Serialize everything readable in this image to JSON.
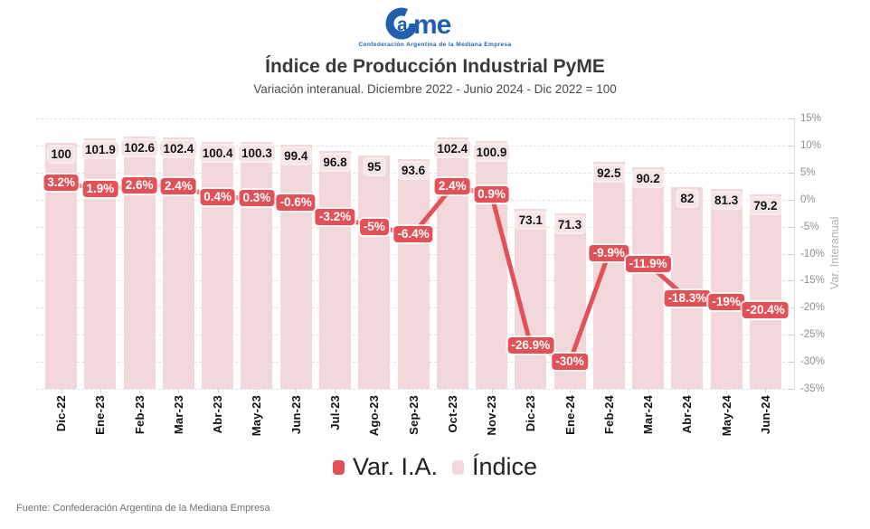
{
  "logo": {
    "name": "Came",
    "caption": "Confederación Argentina de la Mediana Empresa",
    "color": "#1f5fae"
  },
  "header": {
    "title": "Índice de Producción Industrial PyME",
    "subtitle": "Variación interanual. Diciembre 2022 - Junio 2024 - Dic 2022 = 100"
  },
  "chart_data": {
    "type": "bar+line",
    "categories": [
      "Dic-22",
      "Ene-23",
      "Feb-23",
      "Mar-23",
      "Abr-23",
      "May-23",
      "Jun-23",
      "Jul-23",
      "Ago-23",
      "Sep-23",
      "Oct-23",
      "Nov-23",
      "Dic-23",
      "Ene-24",
      "Feb-24",
      "Mar-24",
      "Abr-24",
      "May-24",
      "Jun-24"
    ],
    "series": [
      {
        "name": "Índice",
        "type": "bar",
        "color": "#f2d8da",
        "label_bg": "#f6e5e6",
        "values": [
          100,
          101.9,
          102.6,
          102.4,
          100.4,
          100.3,
          99.4,
          96.8,
          95,
          93.6,
          102.4,
          100.9,
          73.1,
          71.3,
          92.5,
          90.2,
          82,
          81.3,
          79.2
        ],
        "labels": [
          "100",
          "101.9",
          "102.6",
          "102.4",
          "100.4",
          "100.3",
          "99.4",
          "96.8",
          "95",
          "93.6",
          "102.4",
          "100.9",
          "73.1",
          "71.3",
          "92.5",
          "90.2",
          "82",
          "81.3",
          "79.2"
        ]
      },
      {
        "name": "Var. I.A.",
        "type": "line",
        "color": "#e25157",
        "values": [
          3.2,
          1.9,
          2.6,
          2.4,
          0.4,
          0.3,
          -0.6,
          -3.2,
          -5,
          -6.4,
          2.4,
          0.9,
          -26.9,
          -30,
          -9.9,
          -11.9,
          -18.3,
          -19,
          -20.4
        ],
        "labels": [
          "3.2%",
          "1.9%",
          "2.6%",
          "2.4%",
          "0.4%",
          "0.3%",
          "-0.6%",
          "-3.2%",
          "-5%",
          "-6.4%",
          "2.4%",
          "0.9%",
          "-26.9%",
          "-30%",
          "-9.9%",
          "-11.9%",
          "-18.3%",
          "-19%",
          "-20.4%"
        ]
      }
    ],
    "right_axis": {
      "label": "Var. Interanual",
      "min": -35,
      "max": 15,
      "step": 5,
      "tick_labels": [
        "15%",
        "10%",
        "5%",
        "0%",
        "-5%",
        "-10%",
        "-15%",
        "-20%",
        "-25%",
        "-30%",
        "-35%"
      ]
    },
    "bar_axis": {
      "min": 0,
      "max": 110,
      "visible": false
    },
    "grid": "dashed-horizontal",
    "legend": {
      "position": "bottom",
      "items": [
        "Var. I.A.",
        "Índice"
      ]
    }
  },
  "footer": {
    "source": "Fuente: Confederación Argentina de la Mediana Empresa"
  }
}
